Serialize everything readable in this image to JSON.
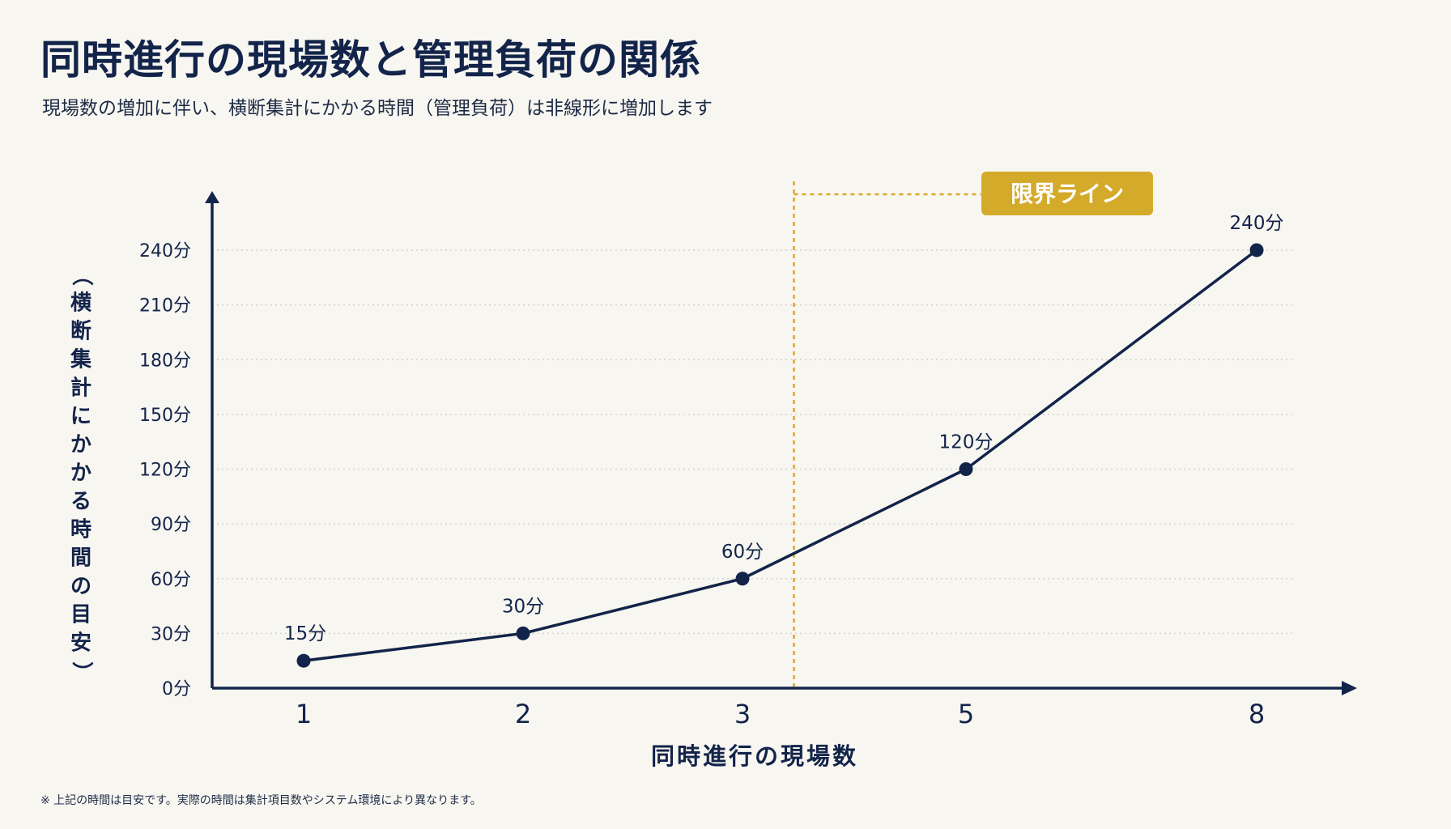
{
  "title": "同時進行の現場数と管理負荷の関係",
  "subtitle": "現場数の増加に伴い、横断集計にかかる時間（管理負荷）は非線形に増加します",
  "footnote": "※ 上記の時間は目安です。実際の時間は集計項目数やシステム環境により異なります。",
  "colors": {
    "navy": "#13244a",
    "gold": "#d4aa2a",
    "background": "#f8f6f1",
    "grid": "#d4d2cc"
  },
  "chart_data": {
    "type": "line",
    "x": [
      "1",
      "2",
      "3",
      "5",
      "8"
    ],
    "values": [
      15,
      30,
      60,
      120,
      240
    ],
    "data_labels": [
      "15分",
      "30分",
      "60分",
      "120分",
      "240分"
    ],
    "xlabel": "同時進行の現場数",
    "ylabel": "（横断集計にかかる時間の目安）",
    "y_ticks": [
      0,
      30,
      60,
      90,
      120,
      150,
      180,
      210,
      240
    ],
    "y_tick_labels": [
      "0分",
      "30分",
      "60分",
      "90分",
      "120分",
      "150分",
      "180分",
      "210分",
      "240分"
    ],
    "ylim": [
      0,
      240
    ],
    "grid": true,
    "threshold": {
      "label": "限界ライン",
      "between": [
        "3",
        "5"
      ]
    }
  }
}
